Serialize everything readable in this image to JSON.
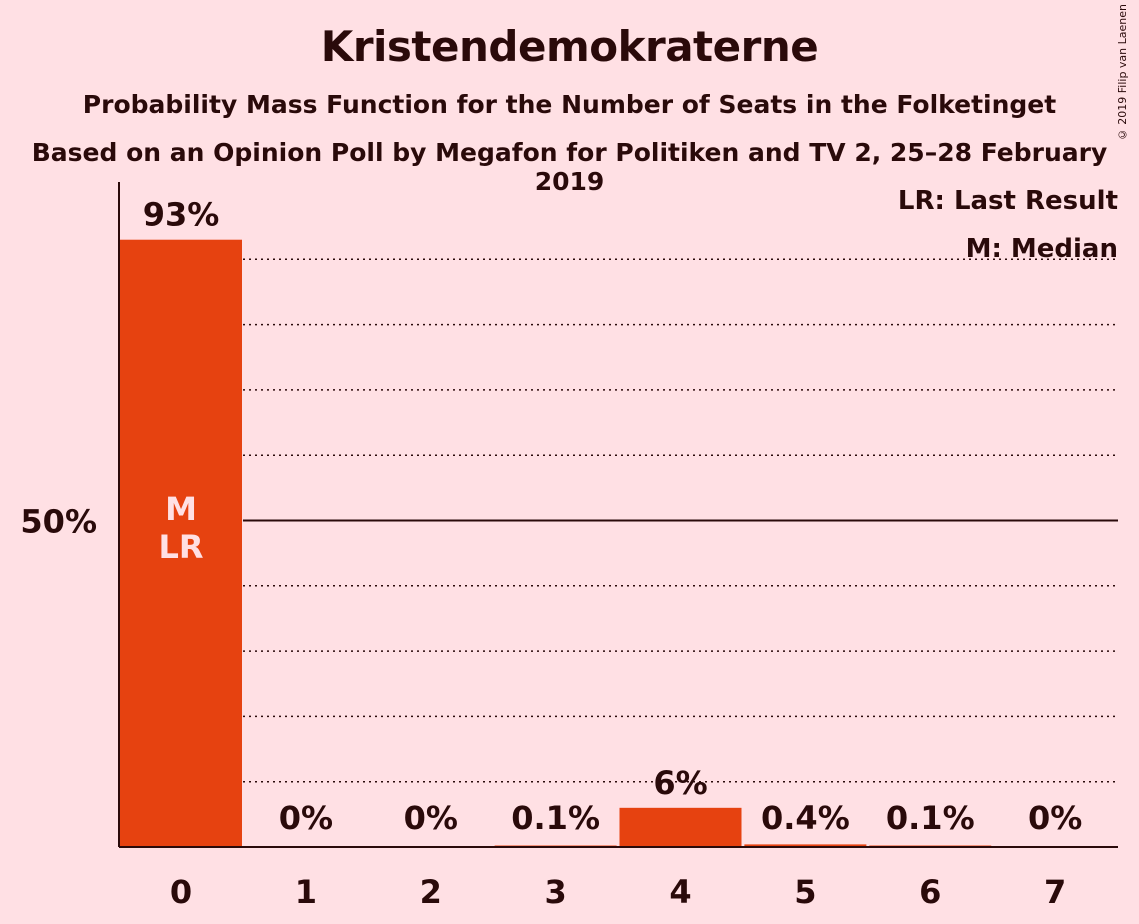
{
  "header": {
    "title": "Kristendemokraterne",
    "subtitle": "Probability Mass Function for the Number of Seats in the Folketinget",
    "source": "Based on an Opinion Poll by Megafon for Politiken and TV 2, 25–28 February 2019",
    "copyright": "© 2019 Filip van Laenen"
  },
  "chart_data": {
    "type": "bar",
    "categories": [
      "0",
      "1",
      "2",
      "3",
      "4",
      "5",
      "6",
      "7"
    ],
    "values": [
      93,
      0,
      0,
      0.1,
      6,
      0.4,
      0.1,
      0
    ],
    "value_labels": [
      "93%",
      "0%",
      "0%",
      "0.1%",
      "6%",
      "0.4%",
      "0.1%",
      "0%"
    ],
    "ylim": [
      0,
      100
    ],
    "ytick_label": "50%",
    "ytick_value": 50,
    "gridlines": [
      10,
      20,
      30,
      40,
      60,
      70,
      80,
      90
    ],
    "bar_annotations": {
      "index": 0,
      "lines": [
        "M",
        "LR"
      ]
    },
    "legend": {
      "placement": "top-right",
      "lines": [
        "LR: Last Result",
        "M: Median"
      ]
    },
    "colors": {
      "bar": "#E64210",
      "background": "#FFE0E4",
      "text": "#2A0A0A",
      "annotation": "#FFE0E4"
    }
  }
}
